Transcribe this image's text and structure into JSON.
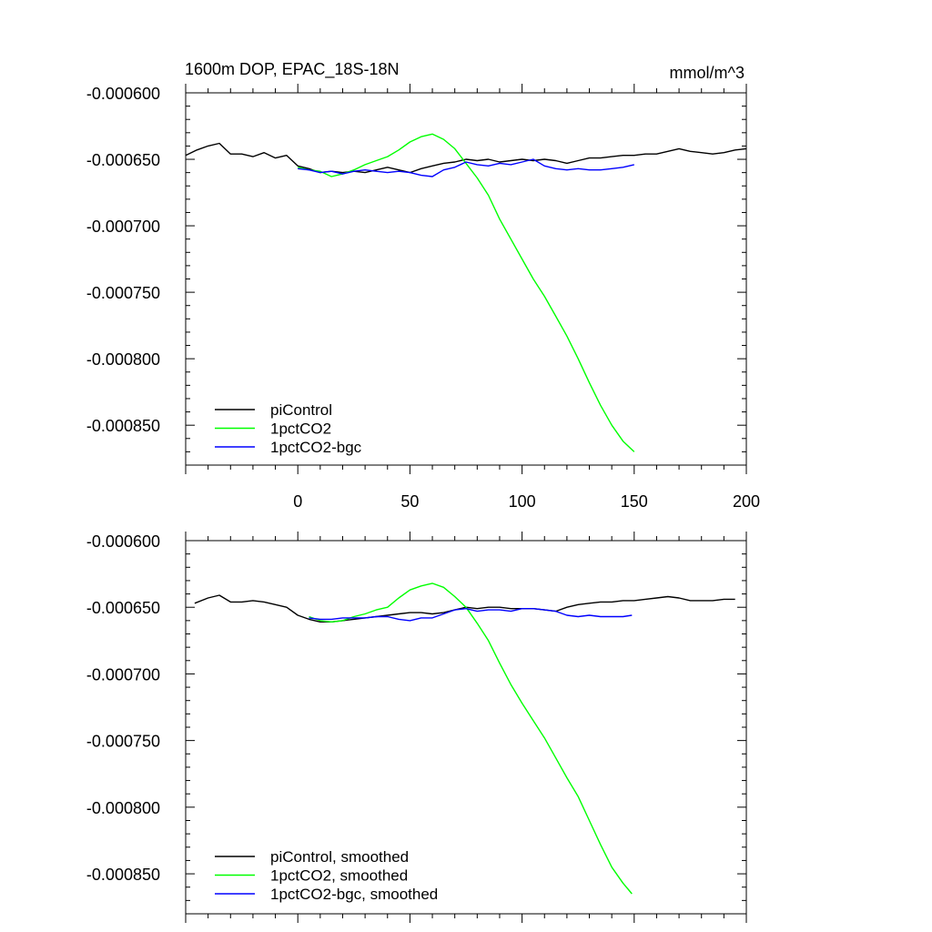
{
  "chart_data": [
    {
      "type": "line",
      "title": "1600m DOP, EPAC_18S-18N",
      "units": "mmol/m^3",
      "xlim": [
        -50,
        200
      ],
      "ylim": [
        -0.00088,
        -0.0006
      ],
      "x_ticks": [
        0,
        50,
        100,
        150,
        200
      ],
      "y_ticks": [
        -0.0006,
        -0.00065,
        -0.0007,
        -0.00075,
        -0.0008,
        -0.00085
      ],
      "y_tick_labels": [
        "-0.000600",
        "-0.000650",
        "-0.000700",
        "-0.000750",
        "-0.000800",
        "-0.000850"
      ],
      "x_tick_labels": [
        "0",
        "50",
        "100",
        "150",
        "200"
      ],
      "legend_position": "bottom-left",
      "series": [
        {
          "name": "piControl",
          "color": "#000000",
          "x": [
            -50,
            -45,
            -40,
            -35,
            -30,
            -25,
            -20,
            -15,
            -10,
            -5,
            0,
            5,
            10,
            15,
            20,
            25,
            30,
            35,
            40,
            45,
            50,
            55,
            60,
            65,
            70,
            75,
            80,
            85,
            90,
            95,
            100,
            105,
            110,
            115,
            120,
            125,
            130,
            135,
            140,
            145,
            150,
            155,
            160,
            165,
            170,
            175,
            180,
            185,
            190,
            195,
            200
          ],
          "values": [
            -0.000647,
            -0.000643,
            -0.00064,
            -0.000638,
            -0.000646,
            -0.000646,
            -0.000648,
            -0.000645,
            -0.000649,
            -0.000647,
            -0.000655,
            -0.000657,
            -0.00066,
            -0.000659,
            -0.00066,
            -0.000659,
            -0.00066,
            -0.000658,
            -0.000656,
            -0.000658,
            -0.00066,
            -0.000657,
            -0.000655,
            -0.000653,
            -0.000652,
            -0.00065,
            -0.000651,
            -0.00065,
            -0.000652,
            -0.000651,
            -0.00065,
            -0.000651,
            -0.00065,
            -0.000651,
            -0.000653,
            -0.000651,
            -0.000649,
            -0.000649,
            -0.000648,
            -0.000647,
            -0.000647,
            -0.000646,
            -0.000646,
            -0.000644,
            -0.000642,
            -0.000644,
            -0.000645,
            -0.000646,
            -0.000645,
            -0.000643,
            -0.000642
          ]
        },
        {
          "name": "1pctCO2",
          "color": "#00ff00",
          "x": [
            0,
            5,
            10,
            15,
            20,
            25,
            30,
            35,
            40,
            45,
            50,
            55,
            60,
            65,
            70,
            75,
            80,
            85,
            90,
            95,
            100,
            105,
            110,
            115,
            120,
            125,
            130,
            135,
            140,
            145,
            150
          ],
          "values": [
            -0.000656,
            -0.000658,
            -0.000659,
            -0.000663,
            -0.000661,
            -0.000658,
            -0.000654,
            -0.000651,
            -0.000648,
            -0.000643,
            -0.000637,
            -0.000633,
            -0.000631,
            -0.000635,
            -0.000642,
            -0.000653,
            -0.000664,
            -0.000677,
            -0.000695,
            -0.00071,
            -0.000725,
            -0.00074,
            -0.000753,
            -0.000768,
            -0.000783,
            -0.0008,
            -0.000818,
            -0.000835,
            -0.00085,
            -0.000862,
            -0.00087
          ]
        },
        {
          "name": "1pctCO2-bgc",
          "color": "#0000ff",
          "x": [
            0,
            5,
            10,
            15,
            20,
            25,
            30,
            35,
            40,
            45,
            50,
            55,
            60,
            65,
            70,
            75,
            80,
            85,
            90,
            95,
            100,
            105,
            110,
            115,
            120,
            125,
            130,
            135,
            140,
            145,
            150
          ],
          "values": [
            -0.000657,
            -0.000658,
            -0.00066,
            -0.000659,
            -0.000661,
            -0.000659,
            -0.000658,
            -0.000659,
            -0.00066,
            -0.000659,
            -0.00066,
            -0.000662,
            -0.000663,
            -0.000658,
            -0.000656,
            -0.000652,
            -0.000654,
            -0.000655,
            -0.000653,
            -0.000654,
            -0.000652,
            -0.00065,
            -0.000655,
            -0.000657,
            -0.000658,
            -0.000657,
            -0.000658,
            -0.000658,
            -0.000657,
            -0.000656,
            -0.000654
          ]
        }
      ]
    },
    {
      "type": "line",
      "title": "",
      "units": "",
      "xlim": [
        -50,
        200
      ],
      "ylim": [
        -0.00088,
        -0.0006
      ],
      "x_ticks": [
        0,
        50,
        100,
        150,
        200
      ],
      "y_ticks": [
        -0.0006,
        -0.00065,
        -0.0007,
        -0.00075,
        -0.0008,
        -0.00085
      ],
      "y_tick_labels": [
        "-0.000600",
        "-0.000650",
        "-0.000700",
        "-0.000750",
        "-0.000800",
        "-0.000850"
      ],
      "x_tick_labels": [],
      "legend_position": "bottom-left",
      "series": [
        {
          "name": "piControl, smoothed",
          "color": "#000000",
          "x": [
            -46,
            -40,
            -35,
            -30,
            -25,
            -20,
            -15,
            -10,
            -5,
            0,
            5,
            10,
            15,
            20,
            25,
            30,
            35,
            40,
            45,
            50,
            55,
            60,
            65,
            70,
            75,
            80,
            85,
            90,
            95,
            100,
            105,
            110,
            115,
            120,
            125,
            130,
            135,
            140,
            145,
            150,
            155,
            160,
            165,
            170,
            175,
            180,
            185,
            190,
            195
          ],
          "values": [
            -0.000647,
            -0.000643,
            -0.000641,
            -0.000646,
            -0.000646,
            -0.000645,
            -0.000646,
            -0.000648,
            -0.00065,
            -0.000656,
            -0.000659,
            -0.000661,
            -0.000661,
            -0.00066,
            -0.000659,
            -0.000658,
            -0.000657,
            -0.000656,
            -0.000655,
            -0.000654,
            -0.000654,
            -0.000655,
            -0.000654,
            -0.000652,
            -0.00065,
            -0.000651,
            -0.00065,
            -0.00065,
            -0.000651,
            -0.000651,
            -0.000651,
            -0.000652,
            -0.000653,
            -0.00065,
            -0.000648,
            -0.000647,
            -0.000646,
            -0.000646,
            -0.000645,
            -0.000645,
            -0.000644,
            -0.000643,
            -0.000642,
            -0.000643,
            -0.000645,
            -0.000645,
            -0.000645,
            -0.000644,
            -0.000644
          ]
        },
        {
          "name": "1pctCO2, smoothed",
          "color": "#00ff00",
          "x": [
            5,
            10,
            15,
            20,
            25,
            30,
            35,
            40,
            45,
            50,
            55,
            60,
            65,
            70,
            75,
            80,
            85,
            90,
            95,
            100,
            105,
            110,
            115,
            120,
            125,
            130,
            135,
            140,
            145,
            149
          ],
          "values": [
            -0.000657,
            -0.00066,
            -0.000661,
            -0.00066,
            -0.000657,
            -0.000655,
            -0.000652,
            -0.00065,
            -0.000643,
            -0.000637,
            -0.000634,
            -0.000632,
            -0.000635,
            -0.000642,
            -0.00065,
            -0.000662,
            -0.000675,
            -0.000692,
            -0.000708,
            -0.000722,
            -0.000735,
            -0.000748,
            -0.000763,
            -0.000778,
            -0.000792,
            -0.00081,
            -0.000828,
            -0.000845,
            -0.000857,
            -0.000865
          ]
        },
        {
          "name": "1pctCO2-bgc, smoothed",
          "color": "#0000ff",
          "x": [
            5,
            10,
            15,
            20,
            25,
            30,
            35,
            40,
            45,
            50,
            55,
            60,
            65,
            70,
            75,
            80,
            85,
            90,
            95,
            100,
            105,
            110,
            115,
            120,
            125,
            130,
            135,
            140,
            145,
            149
          ],
          "values": [
            -0.000658,
            -0.000659,
            -0.000659,
            -0.000658,
            -0.000658,
            -0.000658,
            -0.000657,
            -0.000657,
            -0.000659,
            -0.00066,
            -0.000658,
            -0.000658,
            -0.000655,
            -0.000652,
            -0.000651,
            -0.000653,
            -0.000652,
            -0.000652,
            -0.000653,
            -0.000651,
            -0.000651,
            -0.000652,
            -0.000653,
            -0.000656,
            -0.000657,
            -0.000656,
            -0.000657,
            -0.000657,
            -0.000657,
            -0.000656
          ]
        }
      ]
    }
  ]
}
